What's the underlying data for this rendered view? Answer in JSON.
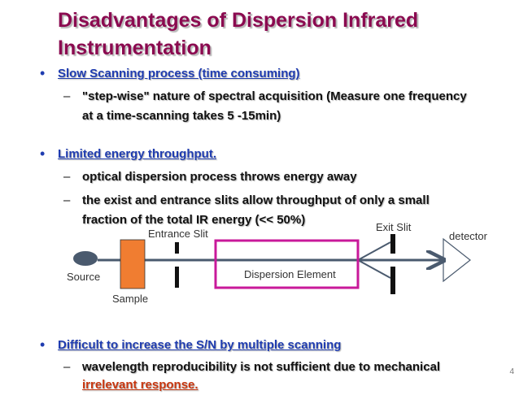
{
  "slide": {
    "title": "Disadvantages of Dispersion Infrared Instrumentation",
    "page_number": "4"
  },
  "bullets": [
    {
      "text": "Slow Scanning process (time consuming)",
      "subs": [
        "\"step-wise\" nature of spectral acquisition (Measure one frequency at a time-scanning takes 5 -15min)"
      ]
    },
    {
      "text": "Limited energy throughput.",
      "subs": [
        "optical dispersion process throws energy away",
        "the exist and entrance slits allow  throughput of only  a small fraction of the total IR energy (<< 50%)"
      ]
    },
    {
      "text": "Difficult to increase the S/N by multiple scanning",
      "subs": [
        "wavelength reproducibility is not sufficient due to mechanical",
        "irrelevant response."
      ]
    }
  ],
  "diagram": {
    "labels": {
      "source": "Source",
      "sample": "Sample",
      "entrance_slit": "Entrance Slit",
      "dispersion_element": "Dispersion Element",
      "exit_slit": "Exit Slit",
      "detector": "detector"
    },
    "colors": {
      "beam": "#4A5A6E",
      "sample_fill": "#F07D31",
      "dispersion_box": "#C8199A",
      "source_fill": "#4A5A6E",
      "slit": "#111111"
    }
  }
}
